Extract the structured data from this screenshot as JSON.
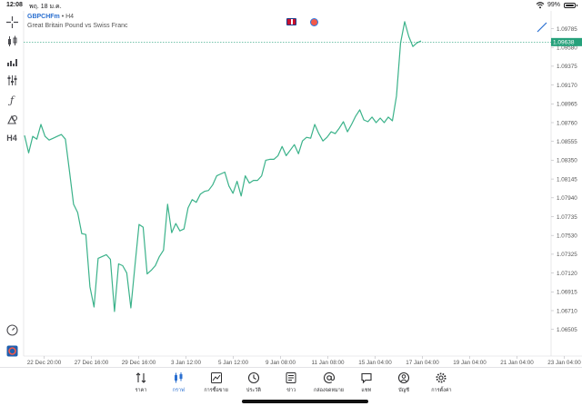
{
  "status_bar": {
    "time": "12:08",
    "date": "พฤ. 18 ม.ค.",
    "battery": "99%"
  },
  "symbol": {
    "name": "GBPCHFm",
    "separator": " • ",
    "timeframe": "H4",
    "description": "Great Britain Pound vs Swiss Franc"
  },
  "left_toolbar": {
    "timeframe_label": "H4"
  },
  "colors": {
    "line": "#3bb28a",
    "price_tag": "#26a17b",
    "accent": "#2a6fd0"
  },
  "chart_data": {
    "type": "line",
    "current_price": "1.09638",
    "y_ticks": [
      "1.09785",
      "1.09580",
      "1.09375",
      "1.09170",
      "1.08965",
      "1.08760",
      "1.08555",
      "1.08350",
      "1.08145",
      "1.07940",
      "1.07735",
      "1.07530",
      "1.07325",
      "1.07120",
      "1.06915",
      "1.06710",
      "1.06505"
    ],
    "x_ticks": [
      "22 Dec 20:00",
      "27 Dec 16:00",
      "29 Dec 16:00",
      "3 Jan 12:00",
      "5 Jan 12:00",
      "9 Jan 08:00",
      "11 Jan 08:00",
      "15 Jan 04:00",
      "17 Jan 04:00",
      "19 Jan 04:00",
      "21 Jan 04:00",
      "23 Jan 04:00"
    ],
    "y_range": [
      1.0635,
      1.0998
    ],
    "values": [
      1.0862,
      1.0843,
      1.0861,
      1.0858,
      1.0874,
      1.0861,
      1.0857,
      1.0859,
      1.0861,
      1.0863,
      1.0858,
      1.0823,
      1.0787,
      1.0778,
      1.0755,
      1.0754,
      1.0697,
      1.0675,
      1.0728,
      1.073,
      1.0732,
      1.0727,
      1.067,
      1.0722,
      1.072,
      1.0712,
      1.0674,
      1.072,
      1.0765,
      1.0762,
      1.0711,
      1.0715,
      1.072,
      1.073,
      1.0737,
      1.0787,
      1.0756,
      1.0766,
      1.0758,
      1.076,
      1.0783,
      1.0792,
      1.0789,
      1.0798,
      1.0801,
      1.0802,
      1.0808,
      1.0818,
      1.082,
      1.0822,
      1.0807,
      1.0799,
      1.0812,
      1.0796,
      1.0818,
      1.081,
      1.0813,
      1.0813,
      1.0818,
      1.0835,
      1.0836,
      1.0836,
      1.084,
      1.085,
      1.084,
      1.0846,
      1.0852,
      1.0842,
      1.0856,
      1.086,
      1.0859,
      1.0874,
      1.0864,
      1.0856,
      1.086,
      1.0866,
      1.0864,
      1.087,
      1.0877,
      1.0866,
      1.0874,
      1.0883,
      1.089,
      1.0879,
      1.0877,
      1.0882,
      1.0876,
      1.0881,
      1.0876,
      1.0882,
      1.0878,
      1.0905,
      1.0963,
      1.0986,
      1.097,
      1.0959,
      1.0963,
      1.0965
    ]
  },
  "tabs": [
    {
      "label": "ราคา",
      "icon": "quotes-icon",
      "active": false
    },
    {
      "label": "กราฟ",
      "icon": "chart-icon",
      "active": true
    },
    {
      "label": "การซื้อขาย",
      "icon": "trade-icon",
      "active": false
    },
    {
      "label": "ประวัติ",
      "icon": "history-icon",
      "active": false
    },
    {
      "label": "ข่าว",
      "icon": "news-icon",
      "active": false
    },
    {
      "label": "กล่องจดหมาย",
      "icon": "mailbox-icon",
      "active": false
    },
    {
      "label": "แชท",
      "icon": "chat-icon",
      "active": false
    },
    {
      "label": "บัญชี",
      "icon": "account-icon",
      "active": false
    },
    {
      "label": "การตั้งค่า",
      "icon": "settings-icon",
      "active": false
    }
  ]
}
